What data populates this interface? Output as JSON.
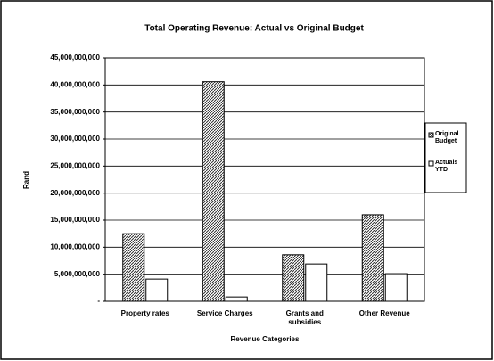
{
  "chart_data": {
    "type": "bar",
    "title": "Total Operating Revenue: Actual vs Original Budget",
    "x_label": "Revenue Categories",
    "y_label": "Rand",
    "categories": [
      "Property rates",
      "Service Charges",
      "Grants and subsidies",
      "Other Revenue"
    ],
    "series": [
      {
        "name": "Original Budget",
        "color": "#888888",
        "pattern": "hatch",
        "values": [
          12500000000,
          40600000000,
          8600000000,
          16000000000
        ]
      },
      {
        "name": "Actuals YTD",
        "color": "#ffffff",
        "values": [
          4100000000,
          800000000,
          6900000000,
          5100000000
        ]
      }
    ],
    "ylim": [
      0,
      45000000000
    ],
    "yticks": [
      {
        "value": 0,
        "label": "-"
      },
      {
        "value": 5000000000,
        "label": "5,000,000,000"
      },
      {
        "value": 10000000000,
        "label": "10,000,000,000"
      },
      {
        "value": 15000000000,
        "label": "15,000,000,000"
      },
      {
        "value": 20000000000,
        "label": "20,000,000,000"
      },
      {
        "value": 25000000000,
        "label": "25,000,000,000"
      },
      {
        "value": 30000000000,
        "label": "30,000,000,000"
      },
      {
        "value": 35000000000,
        "label": "35,000,000,000"
      },
      {
        "value": 40000000000,
        "label": "40,000,000,000"
      },
      {
        "value": 45000000000,
        "label": "45,000,000,000"
      }
    ],
    "grid": true,
    "legend": "right"
  }
}
